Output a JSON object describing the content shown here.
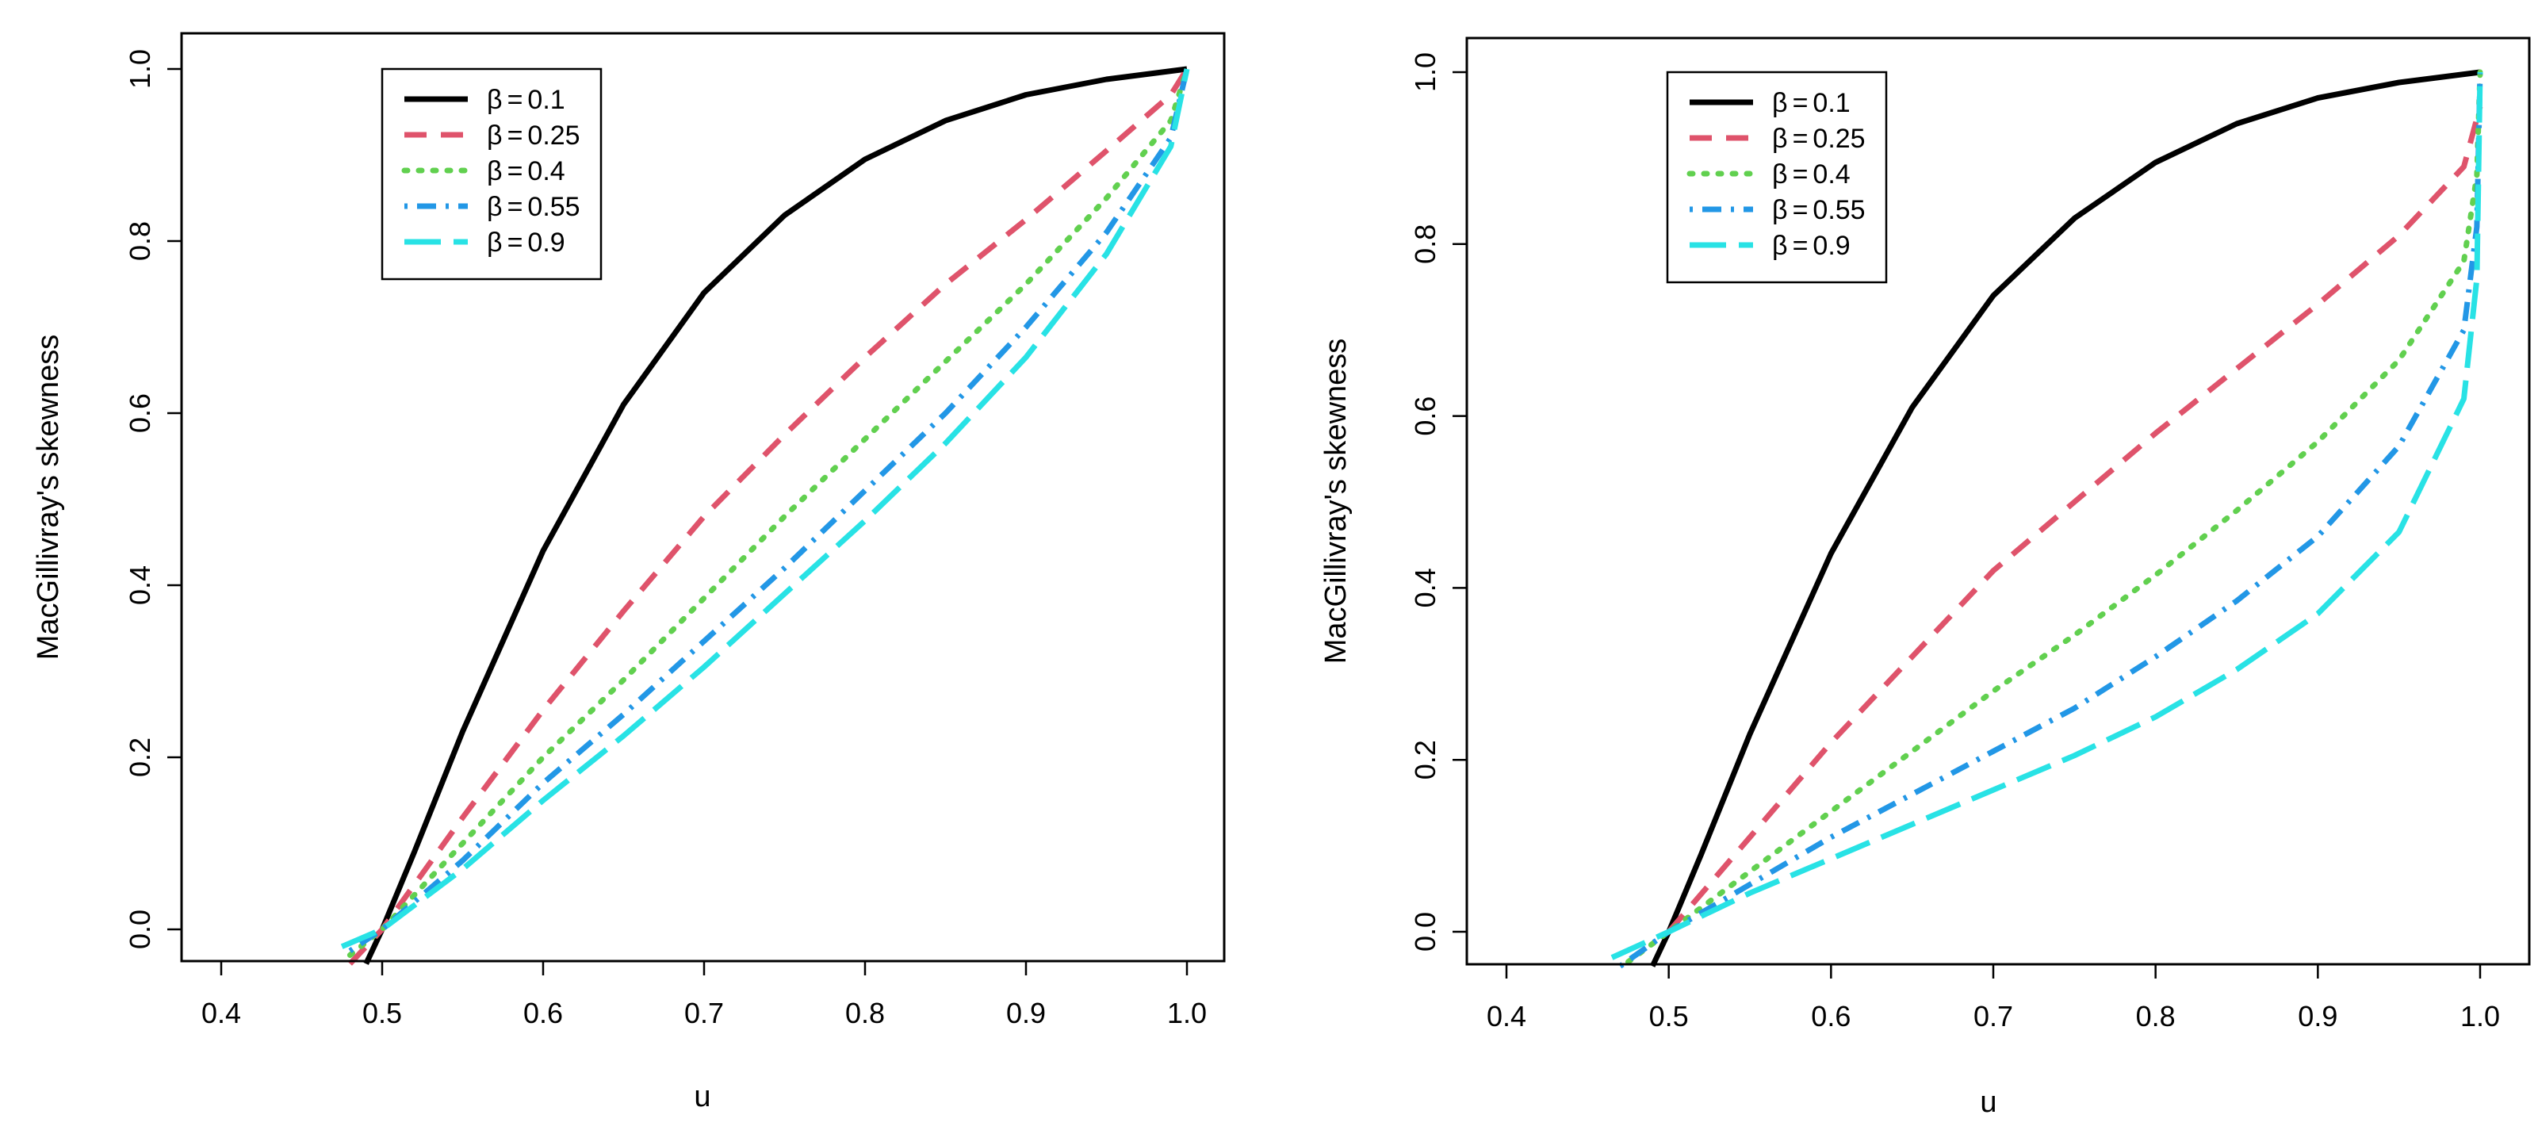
{
  "chart_data": [
    {
      "type": "line",
      "panel": "left",
      "xlabel": "u",
      "ylabel": "MacGillivray's skewness",
      "xlim": [
        0.375,
        1.025
      ],
      "ylim": [
        -0.04,
        1.05
      ],
      "xticks": [
        0.4,
        0.5,
        0.6,
        0.7,
        0.8,
        0.9,
        1.0
      ],
      "xtick_labels": [
        "0.4",
        "0.5",
        "0.6",
        "0.7",
        "0.8",
        "0.9",
        "1.0"
      ],
      "yticks": [
        0.0,
        0.2,
        0.4,
        0.6,
        0.8,
        1.0
      ],
      "ytick_labels": [
        "0.0",
        "0.2",
        "0.4",
        "0.6",
        "0.8",
        "1.0"
      ],
      "legend_position": "top-left",
      "series": [
        {
          "name": "β = 0.1",
          "symbol": "β",
          "value": "0.1",
          "color": "#000000",
          "style": "solid",
          "x": [
            0.49,
            0.5,
            0.52,
            0.55,
            0.6,
            0.65,
            0.7,
            0.75,
            0.8,
            0.85,
            0.9,
            0.95,
            1.0
          ],
          "y": [
            -0.04,
            0.0,
            0.09,
            0.23,
            0.44,
            0.61,
            0.74,
            0.83,
            0.895,
            0.94,
            0.97,
            0.988,
            1.0
          ]
        },
        {
          "name": "β = 0.25",
          "symbol": "β",
          "value": "0.25",
          "color": "#DF536B",
          "style": "dashed",
          "x": [
            0.48,
            0.5,
            0.55,
            0.6,
            0.65,
            0.7,
            0.75,
            0.8,
            0.85,
            0.9,
            0.95,
            0.99,
            1.0
          ],
          "y": [
            -0.04,
            0.0,
            0.13,
            0.255,
            0.37,
            0.48,
            0.575,
            0.665,
            0.75,
            0.825,
            0.905,
            0.97,
            1.0
          ]
        },
        {
          "name": "β = 0.4",
          "symbol": "β",
          "value": "0.4",
          "color": "#61D04F",
          "style": "dotted",
          "x": [
            0.48,
            0.5,
            0.55,
            0.6,
            0.65,
            0.7,
            0.75,
            0.8,
            0.85,
            0.9,
            0.95,
            0.99,
            1.0
          ],
          "y": [
            -0.03,
            0.0,
            0.1,
            0.2,
            0.29,
            0.385,
            0.48,
            0.57,
            0.66,
            0.75,
            0.85,
            0.94,
            1.0
          ]
        },
        {
          "name": "β = 0.55",
          "symbol": "β",
          "value": "0.55",
          "color": "#2297E6",
          "style": "dotdash",
          "x": [
            0.48,
            0.5,
            0.55,
            0.6,
            0.65,
            0.7,
            0.75,
            0.8,
            0.85,
            0.9,
            0.95,
            0.99,
            1.0
          ],
          "y": [
            -0.025,
            0.0,
            0.08,
            0.17,
            0.25,
            0.335,
            0.42,
            0.51,
            0.6,
            0.7,
            0.81,
            0.92,
            1.0
          ]
        },
        {
          "name": "β = 0.9",
          "symbol": "β",
          "value": "0.9",
          "color": "#28E2E5",
          "style": "longdash",
          "x": [
            0.475,
            0.5,
            0.55,
            0.6,
            0.65,
            0.7,
            0.75,
            0.8,
            0.85,
            0.9,
            0.95,
            0.99,
            1.0
          ],
          "y": [
            -0.02,
            0.0,
            0.07,
            0.15,
            0.225,
            0.305,
            0.39,
            0.475,
            0.565,
            0.665,
            0.785,
            0.91,
            1.0
          ]
        }
      ]
    },
    {
      "type": "line",
      "panel": "right",
      "xlabel": "u",
      "ylabel": "MacGillivray's skewness",
      "xlim": [
        0.375,
        1.025
      ],
      "ylim": [
        -0.04,
        1.05
      ],
      "xticks": [
        0.4,
        0.5,
        0.6,
        0.7,
        0.8,
        0.9,
        1.0
      ],
      "xtick_labels": [
        "0.4",
        "0.5",
        "0.6",
        "0.7",
        "0.8",
        "0.9",
        "1.0"
      ],
      "yticks": [
        0.0,
        0.2,
        0.4,
        0.6,
        0.8,
        1.0
      ],
      "ytick_labels": [
        "0.0",
        "0.2",
        "0.4",
        "0.6",
        "0.8",
        "1.0"
      ],
      "legend_position": "top-left",
      "series": [
        {
          "name": "β = 0.1",
          "symbol": "β",
          "value": "0.1",
          "color": "#000000",
          "style": "solid",
          "x": [
            0.49,
            0.5,
            0.52,
            0.55,
            0.6,
            0.65,
            0.7,
            0.75,
            0.8,
            0.85,
            0.9,
            0.95,
            1.0
          ],
          "y": [
            -0.04,
            0.0,
            0.09,
            0.23,
            0.44,
            0.61,
            0.74,
            0.83,
            0.895,
            0.94,
            0.97,
            0.988,
            1.0
          ]
        },
        {
          "name": "β = 0.25",
          "symbol": "β",
          "value": "0.25",
          "color": "#DF536B",
          "style": "dashed",
          "x": [
            0.5,
            0.55,
            0.6,
            0.65,
            0.7,
            0.75,
            0.8,
            0.85,
            0.9,
            0.95,
            0.99,
            1.0
          ],
          "y": [
            0.0,
            0.11,
            0.22,
            0.32,
            0.42,
            0.5,
            0.58,
            0.655,
            0.73,
            0.81,
            0.89,
            0.96
          ]
        },
        {
          "name": "β = 0.4",
          "symbol": "β",
          "value": "0.4",
          "color": "#61D04F",
          "style": "dotted",
          "x": [
            0.475,
            0.5,
            0.55,
            0.6,
            0.65,
            0.7,
            0.75,
            0.8,
            0.85,
            0.9,
            0.95,
            0.99,
            0.998,
            1.0
          ],
          "y": [
            -0.035,
            0.0,
            0.07,
            0.14,
            0.21,
            0.28,
            0.345,
            0.415,
            0.49,
            0.57,
            0.665,
            0.78,
            0.88,
            1.0
          ]
        },
        {
          "name": "β = 0.55",
          "symbol": "β",
          "value": "0.55",
          "color": "#2297E6",
          "style": "dotdash",
          "x": [
            0.47,
            0.5,
            0.55,
            0.6,
            0.65,
            0.7,
            0.75,
            0.8,
            0.85,
            0.9,
            0.95,
            0.99,
            0.998,
            1.0
          ],
          "y": [
            -0.04,
            0.0,
            0.055,
            0.11,
            0.16,
            0.21,
            0.26,
            0.32,
            0.385,
            0.46,
            0.565,
            0.7,
            0.82,
            1.0
          ]
        },
        {
          "name": "β = 0.9",
          "symbol": "β",
          "value": "0.9",
          "color": "#28E2E5",
          "style": "longdash",
          "x": [
            0.465,
            0.5,
            0.55,
            0.6,
            0.65,
            0.7,
            0.75,
            0.8,
            0.85,
            0.9,
            0.95,
            0.99,
            0.998,
            1.0
          ],
          "y": [
            -0.03,
            0.0,
            0.045,
            0.085,
            0.125,
            0.165,
            0.205,
            0.25,
            0.305,
            0.37,
            0.465,
            0.62,
            0.76,
            1.0
          ]
        }
      ]
    }
  ]
}
